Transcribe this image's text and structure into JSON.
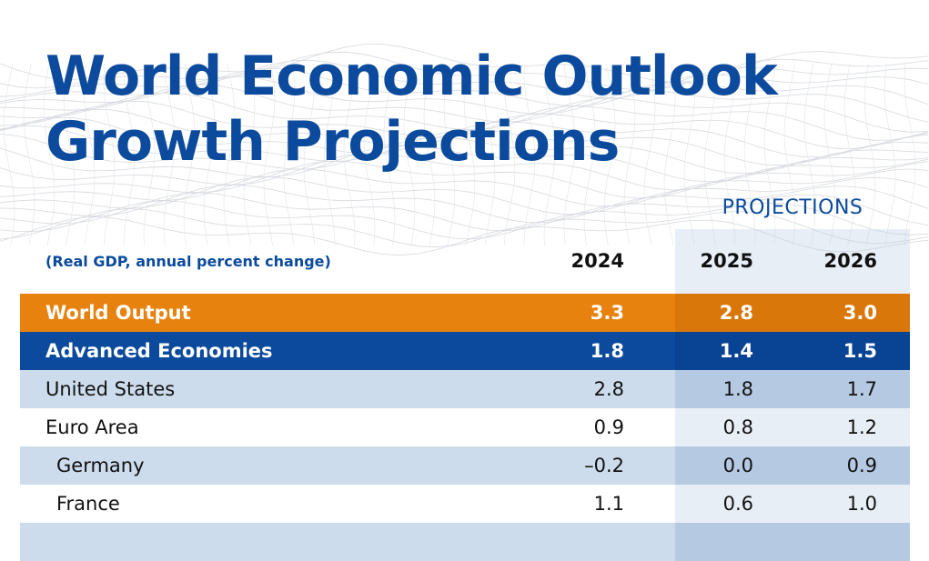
{
  "title_lines": [
    "World Economic Outlook",
    "Growth Projections"
  ],
  "projections_label": "PROJECTIONS",
  "subtitle": "(Real GDP, annual percent change)",
  "colors": {
    "brand_blue": "#0b4a9c",
    "world_orange": "#e8820e",
    "light_row": "#cddcec"
  },
  "chart_data": {
    "type": "table",
    "title": "World Economic Outlook Growth Projections",
    "subtitle": "(Real GDP, annual percent change)",
    "columns": [
      "2024",
      "2025",
      "2026"
    ],
    "projection_columns": [
      "2025",
      "2026"
    ],
    "rows": [
      {
        "label": "World Output",
        "values": [
          "3.3",
          "2.8",
          "3.0"
        ],
        "style": "world"
      },
      {
        "label": "Advanced Economies",
        "values": [
          "1.8",
          "1.4",
          "1.5"
        ],
        "style": "adv"
      },
      {
        "label": "United States",
        "values": [
          "2.8",
          "1.8",
          "1.7"
        ],
        "style": "light"
      },
      {
        "label": "Euro Area",
        "values": [
          "0.9",
          "0.8",
          "1.2"
        ],
        "style": "plain"
      },
      {
        "label": "Germany",
        "values": [
          "–0.2",
          "0.0",
          "0.9"
        ],
        "style": "light",
        "indent": true
      },
      {
        "label": "France",
        "values": [
          "1.1",
          "0.6",
          "1.0"
        ],
        "style": "plain",
        "indent": true
      },
      {
        "label": "",
        "values": [
          "",
          "",
          ""
        ],
        "style": "light"
      }
    ]
  }
}
